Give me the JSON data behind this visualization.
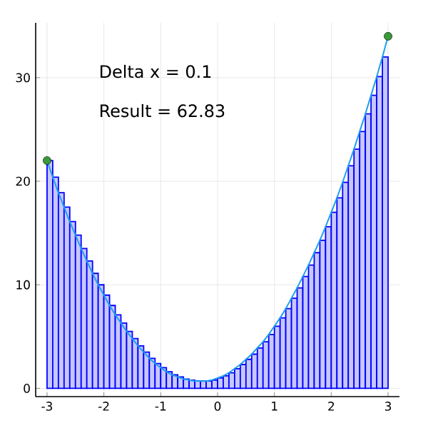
{
  "chart_data": {
    "type": "histogram",
    "annotations": [
      "Delta x = 0.1",
      "Result  = 62.83"
    ],
    "xlim": [
      -3.2,
      3.2
    ],
    "ylim": [
      -0.8,
      35.3
    ],
    "xticks": [
      -3,
      -2,
      -1,
      0,
      1,
      2,
      3
    ],
    "yticks": [
      0,
      10,
      20,
      30
    ],
    "grid": true,
    "series": [
      {
        "type": "histogram",
        "color": "#0000ff",
        "bins": [
          -3.0,
          -2.9,
          -2.8,
          -2.7,
          -2.6,
          -2.5,
          -2.4,
          -2.3,
          -2.2,
          -2.1,
          -2.0,
          -1.9,
          -1.8,
          -1.7,
          -1.6,
          -1.5,
          -1.4,
          -1.3,
          -1.2,
          -1.1,
          -1.0,
          -0.9,
          -0.8,
          -0.7,
          -0.6,
          -0.5,
          -0.4,
          -0.3,
          -0.2,
          -0.1,
          0.0,
          0.1,
          0.2,
          0.3,
          0.4,
          0.5,
          0.6,
          0.7,
          0.8,
          0.9,
          1.0,
          1.1,
          1.2,
          1.3,
          1.4,
          1.5,
          1.6,
          1.7,
          1.8,
          1.9,
          2.0,
          2.1,
          2.2,
          2.3,
          2.4,
          2.5,
          2.6,
          2.7,
          2.8,
          2.9,
          3.0
        ],
        "values": [
          22.0,
          20.4,
          18.9,
          17.5,
          16.1,
          14.8,
          13.5,
          12.3,
          11.1,
          10.0,
          9.0,
          8.0,
          7.1,
          6.3,
          5.5,
          4.8,
          4.1,
          3.5,
          2.9,
          2.4,
          2.0,
          1.6,
          1.3,
          1.1,
          0.9,
          0.8,
          0.7,
          0.7,
          0.7,
          0.8,
          1.0,
          1.2,
          1.5,
          1.9,
          2.3,
          2.8,
          3.3,
          3.9,
          4.5,
          5.2,
          6.0,
          6.8,
          7.7,
          8.7,
          9.7,
          10.8,
          11.9,
          13.1,
          14.3,
          15.6,
          17.0,
          18.4,
          19.9,
          21.5,
          23.1,
          24.8,
          26.5,
          28.3,
          30.1,
          32.0
        ]
      },
      {
        "type": "line",
        "color": "#1e9fef",
        "marker": "none",
        "x": [
          -3.0,
          -2.9,
          -2.8,
          -2.7,
          -2.6,
          -2.5,
          -2.4,
          -2.3,
          -2.2,
          -2.1,
          -2.0,
          -1.9,
          -1.8,
          -1.7,
          -1.6,
          -1.5,
          -1.4,
          -1.3,
          -1.2,
          -1.1,
          -1.0,
          -0.9,
          -0.8,
          -0.7,
          -0.6,
          -0.5,
          -0.4,
          -0.3,
          -0.2,
          -0.1,
          0.0,
          0.1,
          0.2,
          0.3,
          0.4,
          0.5,
          0.6,
          0.7,
          0.8,
          0.9,
          1.0,
          1.1,
          1.2,
          1.3,
          1.4,
          1.5,
          1.6,
          1.7,
          1.8,
          1.9,
          2.0,
          2.1,
          2.2,
          2.3,
          2.4,
          2.5,
          2.6,
          2.7,
          2.8,
          2.9,
          3.0
        ],
        "values": [
          22.0,
          20.4,
          18.9,
          17.5,
          16.1,
          14.8,
          13.5,
          12.3,
          11.1,
          10.0,
          9.0,
          8.0,
          7.1,
          6.3,
          5.5,
          4.8,
          4.1,
          3.5,
          2.9,
          2.4,
          2.0,
          1.6,
          1.3,
          1.1,
          0.9,
          0.8,
          0.7,
          0.7,
          0.7,
          0.8,
          1.0,
          1.2,
          1.5,
          1.9,
          2.3,
          2.8,
          3.3,
          3.9,
          4.5,
          5.2,
          6.0,
          6.8,
          7.7,
          8.7,
          9.7,
          10.8,
          11.9,
          13.1,
          14.3,
          15.6,
          17.0,
          18.4,
          19.9,
          21.5,
          23.1,
          24.8,
          26.5,
          28.3,
          30.1,
          32.0,
          34.0
        ]
      },
      {
        "type": "scatter",
        "color": "#3a9a3a",
        "marker": "circle",
        "x": [
          -3,
          3
        ],
        "values": [
          22,
          34
        ]
      }
    ]
  }
}
